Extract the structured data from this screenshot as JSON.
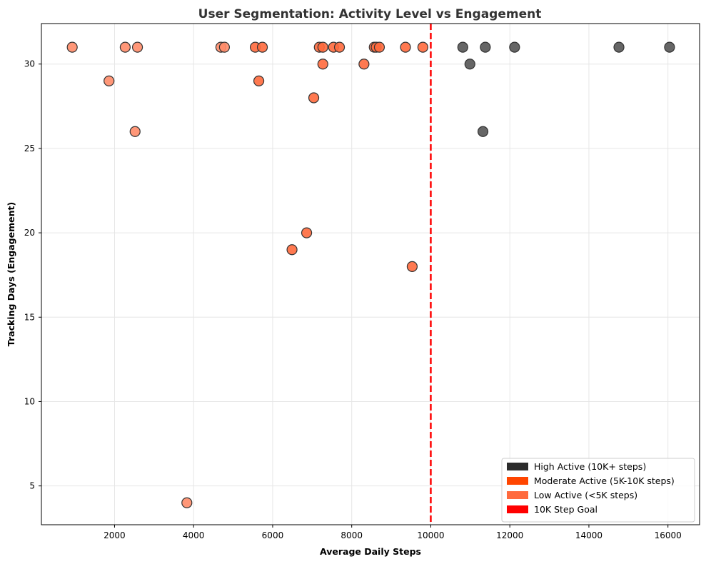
{
  "chart_data": {
    "type": "scatter",
    "title": "User Segmentation: Activity Level vs Engagement",
    "xlabel": "Average Daily Steps",
    "ylabel": "Tracking Days (Engagement)",
    "xlim": [
      150,
      16800
    ],
    "ylim": [
      2.7,
      32.4
    ],
    "xticks": [
      2000,
      4000,
      6000,
      8000,
      10000,
      12000,
      14000,
      16000
    ],
    "yticks": [
      5,
      10,
      15,
      20,
      25,
      30
    ],
    "grid": true,
    "legend_position": "lower-right",
    "reference_line": {
      "x": 10000,
      "color": "#ff0000",
      "style": "dashed",
      "label": "10K Step Goal"
    },
    "legend": [
      {
        "label": "High Active (10K+ steps)",
        "color": "#2b2b2b"
      },
      {
        "label": "Moderate Active (5K-10K steps)",
        "color": "#ff4500"
      },
      {
        "label": "Low Active (<5K steps)",
        "color": "#ff6a3d"
      },
      {
        "label": "10K Step Goal",
        "color": "#ff0000"
      }
    ],
    "series": [
      {
        "name": "High Active (10K+ steps)",
        "color": "#555555",
        "points": [
          [
            10810,
            31
          ],
          [
            11380,
            31
          ],
          [
            12120,
            31
          ],
          [
            14760,
            31
          ],
          [
            16040,
            31
          ],
          [
            10990,
            30
          ],
          [
            11320,
            26
          ]
        ]
      },
      {
        "name": "Moderate Active (5K-10K steps)",
        "color": "#ff6a3d",
        "points": [
          [
            5560,
            31
          ],
          [
            5740,
            31
          ],
          [
            7180,
            31
          ],
          [
            7270,
            31
          ],
          [
            7540,
            31
          ],
          [
            7690,
            31
          ],
          [
            8570,
            31
          ],
          [
            8620,
            31
          ],
          [
            8700,
            31
          ],
          [
            9360,
            31
          ],
          [
            9800,
            31
          ],
          [
            7270,
            30
          ],
          [
            8310,
            30
          ],
          [
            5650,
            29
          ],
          [
            7040,
            28
          ],
          [
            6860,
            20
          ],
          [
            6490,
            19
          ],
          [
            9530,
            18
          ]
        ]
      },
      {
        "name": "Low Active (<5K steps)",
        "color": "#ff8c69",
        "points": [
          [
            930,
            31
          ],
          [
            2270,
            31
          ],
          [
            2580,
            31
          ],
          [
            4690,
            31
          ],
          [
            4780,
            31
          ],
          [
            1860,
            29
          ],
          [
            2520,
            26
          ],
          [
            3830,
            4
          ]
        ]
      }
    ]
  }
}
